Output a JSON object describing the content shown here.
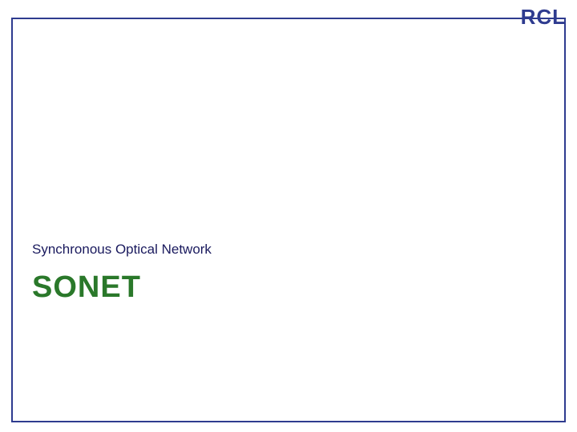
{
  "logo": {
    "text": "RCL",
    "color": "#2e3b8f",
    "fontsize": 26,
    "fontweight": "bold"
  },
  "frame": {
    "border_color": "#2e3b8f",
    "border_width": 2
  },
  "slide": {
    "subtitle": "Synchronous Optical Network",
    "subtitle_color": "#1a1a5e",
    "subtitle_fontsize": 17,
    "title": "SONET",
    "title_color": "#2a782a",
    "title_fontsize": 38,
    "title_fontweight": "bold"
  },
  "background_color": "#ffffff"
}
